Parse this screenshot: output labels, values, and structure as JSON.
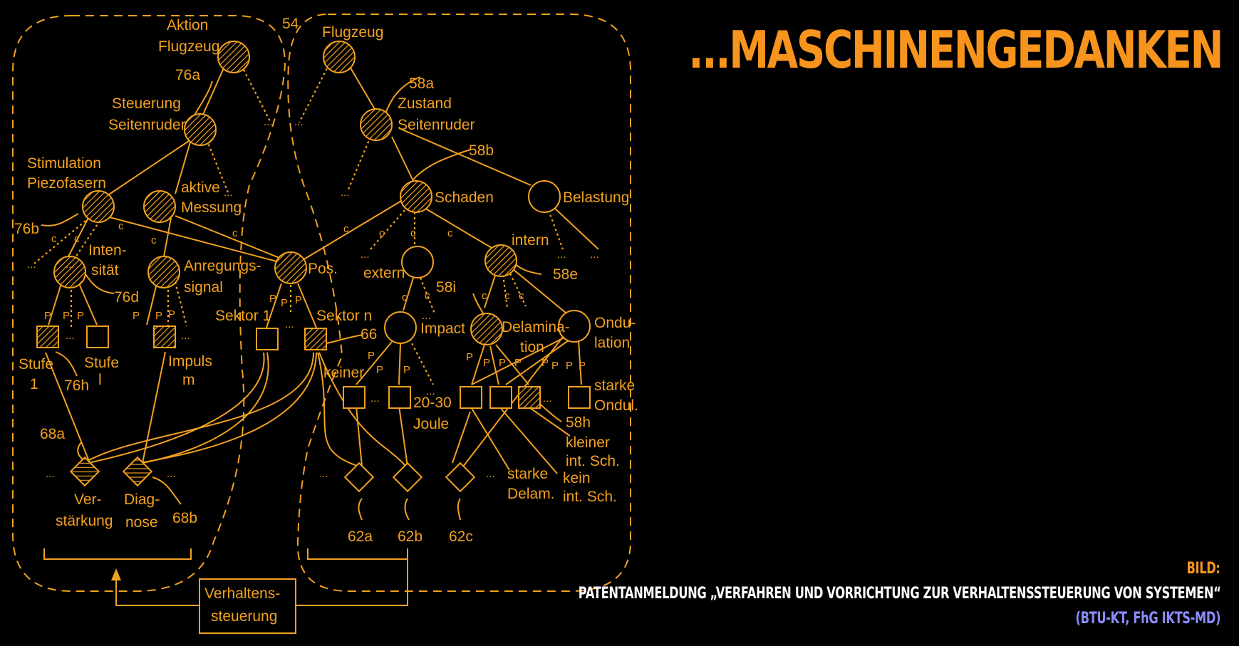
{
  "headline": "...MASCHINENGEDANKEN",
  "credit": {
    "label": "BILD:",
    "text": "PATENTANMELDUNG „VERFAHREN UND VORRICHTUNG ZUR VERHALTENSSTEUERUNG VON SYSTEMEN“",
    "source": "(BTU-KT, FhG IKTS-MD)"
  },
  "diagram": {
    "accent_color": "#f2a11f",
    "labels": {
      "aktion": "Aktion",
      "flugzeug_left": "Flugzeug",
      "ref_54": "54",
      "flugzeug_right": "Flugzeug",
      "ref_76a": "76a",
      "steuerung": "Steuerung",
      "seitenruder_left": "Seitenruder",
      "ref_58a": "58a",
      "zustand": "Zustand",
      "seitenruder_right": "Seitenruder",
      "ref_58b": "58b",
      "stimulation": "Stimulation",
      "piezofasern": "Piezofasern",
      "aktive": "aktive",
      "messung": "Messung",
      "schaden": "Schaden",
      "belastung": "Belastung",
      "ref_76b": "76b",
      "inten": "Inten-",
      "sitaet": "sität",
      "anregungs": "Anregungs-",
      "signal": "signal",
      "pos": "Pos.",
      "extern": "extern",
      "intern": "intern",
      "ref_58e": "58e",
      "ref_76d": "76d",
      "ref_58i": "58i",
      "sektor1": "Sektor 1",
      "sektorn": "Sektor n",
      "ref_66": "66",
      "impact": "Impact",
      "delamina": "Delamina-",
      "tion": "tion",
      "ondu": "Ondu-",
      "lation": "lation",
      "stufe1a": "Stufe",
      "stufe1b": "1",
      "stufela": "Stufe",
      "stufelb": "l",
      "impulsa": "Impuls",
      "impulsb": "m",
      "ref_76h": "76h",
      "keiner": "keiner",
      "joule_a": "20-30",
      "joule_b": "Joule",
      "starke_ond_a": "starke",
      "starke_ond_b": "Ondul.",
      "ref_58h": "58h",
      "kleiner_a": "kleiner",
      "kleiner_b": "int. Sch.",
      "kein_a": "kein",
      "kein_b": "int. Sch.",
      "starke_del_a": "starke",
      "starke_del_b": "Delam.",
      "ref_68a": "68a",
      "verst_a": "Ver-",
      "verst_b": "stärkung",
      "diag_a": "Diag-",
      "diag_b": "nose",
      "ref_68b": "68b",
      "ref_62a": "62a",
      "ref_62b": "62b",
      "ref_62c": "62c",
      "verh_a": "Verhaltens-",
      "verh_b": "steuerung",
      "c": "c",
      "p": "P",
      "ellipsis": "..."
    }
  }
}
